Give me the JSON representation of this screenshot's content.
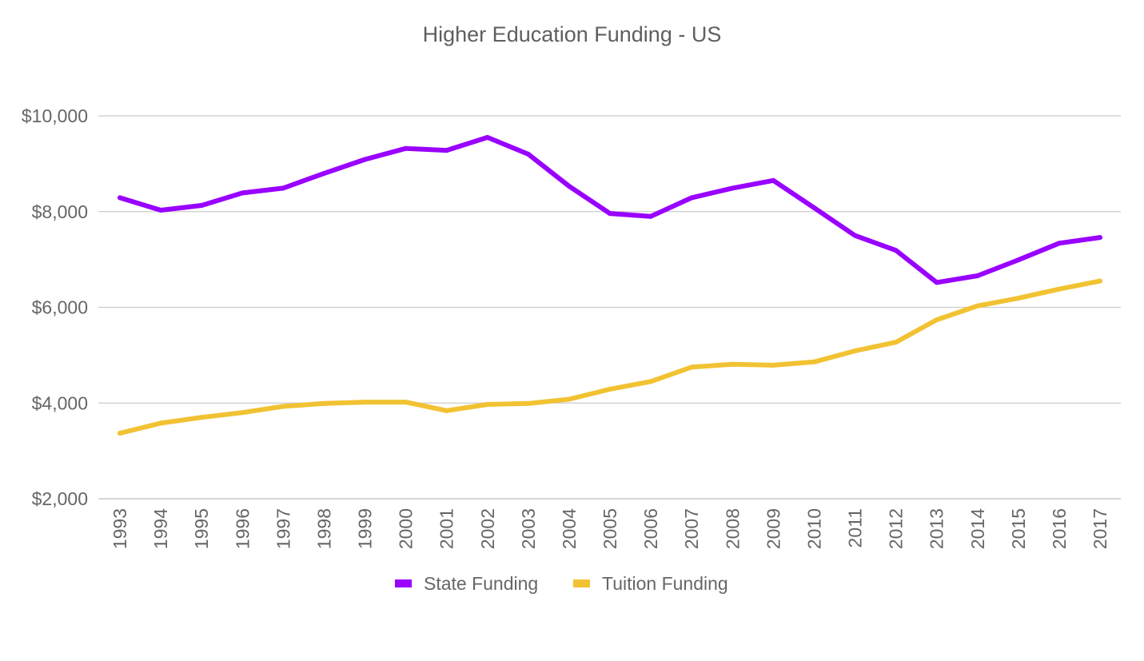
{
  "chart_data": {
    "type": "line",
    "title": "Higher Education Funding - US",
    "xlabel": "",
    "ylabel": "",
    "x": [
      "1993",
      "1994",
      "1995",
      "1996",
      "1997",
      "1998",
      "1999",
      "2000",
      "2001",
      "2002",
      "2003",
      "2004",
      "2005",
      "2006",
      "2007",
      "2008",
      "2009",
      "2010",
      "2011",
      "2012",
      "2013",
      "2014",
      "2015",
      "2016",
      "2017"
    ],
    "y_ticks": [
      "$2,000",
      "$4,000",
      "$6,000",
      "$8,000",
      "$10,000"
    ],
    "y_tick_values": [
      2000,
      4000,
      6000,
      8000,
      10000
    ],
    "ylim": [
      2000,
      10000
    ],
    "grid": true,
    "legend_position": "bottom",
    "series": [
      {
        "name": "State Funding",
        "color": "#9900ff",
        "values": [
          8290,
          8030,
          8130,
          8390,
          8490,
          8800,
          9090,
          9320,
          9280,
          9550,
          9200,
          8530,
          7960,
          7900,
          8290,
          8490,
          8650,
          8080,
          7500,
          7190,
          6520,
          6660,
          6990,
          7340,
          7460
        ]
      },
      {
        "name": "Tuition Funding",
        "color": "#f1c232",
        "values": [
          3370,
          3580,
          3700,
          3800,
          3930,
          3990,
          4020,
          4020,
          3840,
          3970,
          3990,
          4080,
          4290,
          4450,
          4750,
          4810,
          4790,
          4860,
          5090,
          5270,
          5740,
          6030,
          6190,
          6380,
          6550
        ]
      }
    ]
  }
}
